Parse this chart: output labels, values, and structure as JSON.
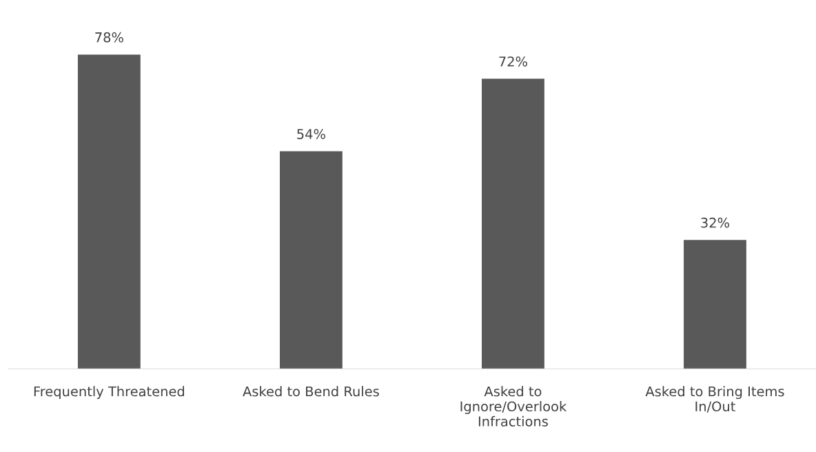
{
  "chart_data": {
    "type": "bar",
    "categories": [
      "Frequently Threatened",
      "Asked to Bend Rules",
      "Asked to\nIgnore/Overlook\nInfractions",
      "Asked to Bring Items\nIn/Out"
    ],
    "values": [
      78,
      54,
      72,
      32
    ],
    "value_labels": [
      "78%",
      "54%",
      "72%",
      "32%"
    ],
    "color": "#595959",
    "tick_labels": "x",
    "grid": false,
    "legend": false
  }
}
